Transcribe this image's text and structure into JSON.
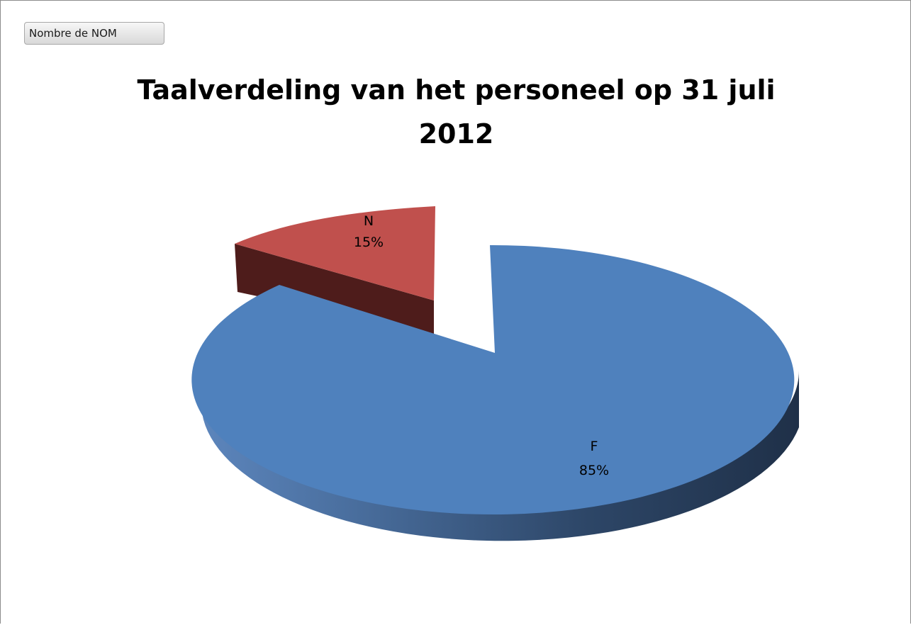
{
  "field_button": {
    "label": "Nombre de NOM"
  },
  "chart_data": {
    "type": "pie",
    "title": "Taalverdeling van het personeel op 31 juli 2012",
    "title_lines": [
      "Taalverdeling van het personeel op 31 juli",
      "2012"
    ],
    "three_d": true,
    "categories": [
      "F",
      "N"
    ],
    "values": [
      85,
      15
    ],
    "value_labels": [
      "85%",
      "15%"
    ],
    "colors": [
      "#4f81bd",
      "#c0504d"
    ],
    "exploded": [
      "N"
    ]
  }
}
